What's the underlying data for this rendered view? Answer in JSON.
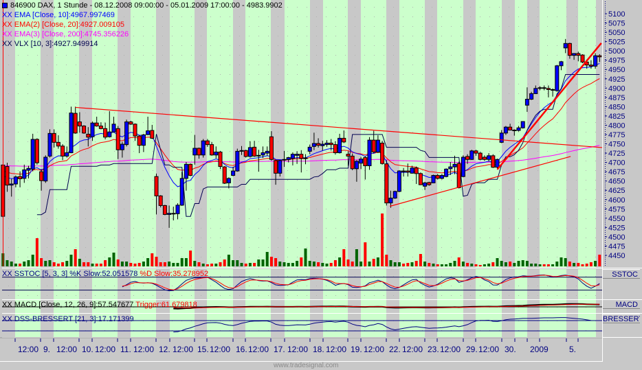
{
  "header": {
    "symbol_icon": "blue-square-icon",
    "title": "846900  DAX, 1 Stunde - 08.12.2008 09:00:00 - 05.01.2009 17:00:00 - 4983.9902"
  },
  "legends": [
    {
      "prefix": "XX",
      "text": "EMA [Close, 10]:4967.997469",
      "color": "#0000ff"
    },
    {
      "prefix": "XX",
      "text": "EMA(2) [Close, 20]:4927.009105",
      "color": "#ff0000"
    },
    {
      "prefix": "XX",
      "text": "EMA(3) [Close, 200]:4745.356226",
      "color": "#ff00ff"
    },
    {
      "prefix": "XX",
      "text": "VLX [10, 3]:4927.949914",
      "color": "#000050"
    }
  ],
  "indicators": {
    "sstoc": {
      "prefix": "XX",
      "text": "SSTOC [5, 3, 3] %K Slow:52.051578",
      "trigger": "%D Slow:35.278952",
      "side_label": "SSTOC"
    },
    "macd": {
      "prefix": "XX",
      "text": "MACD [Close, 12, 26, 9]:57.547677",
      "trigger": "Trigger:61.679818",
      "side_label": "MACD"
    },
    "dss": {
      "prefix": "XX",
      "text": "DSS-BRESSERT [21, 3]:17.171399",
      "side_label": "BRESSERT"
    }
  },
  "colors": {
    "up_candle": "#0000ff",
    "down_candle": "#ff0000",
    "session_day": "#ccffcc",
    "session_off": "#c8c8c8",
    "volume_up": "#006400",
    "volume_down": "#ff0000",
    "axis_text": "#000080",
    "trendline": "#ff0000"
  },
  "watermark": "www.tradesignal.com",
  "chart_data": {
    "type": "candlestick",
    "price_axis": {
      "ticks": [
        5100,
        5075,
        5050,
        5025,
        5000,
        4975,
        4950,
        4925,
        4900,
        4875,
        4850,
        4825,
        4800,
        4775,
        4750,
        4725,
        4700,
        4675,
        4650,
        4625,
        4600,
        4575,
        4550,
        4525,
        4500,
        4475,
        4450
      ],
      "range": [
        4450,
        5100
      ]
    },
    "time_axis": {
      "labels": [
        "12:00",
        "9.",
        "12:00",
        "10.",
        "12:00",
        "11.",
        "12:00",
        "12.",
        "12:00",
        "15.",
        "12:00",
        "16.",
        "12:00",
        "17.",
        "12:00",
        "18.",
        "12:00",
        "19.",
        "12:00",
        "22.",
        "12:00",
        "23.",
        "12:00",
        "29.",
        "12:00",
        "30.",
        "",
        "2009",
        "",
        "5.",
        ""
      ]
    },
    "ohlc": [
      [
        4693,
        4695,
        4552,
        4555
      ],
      [
        4689,
        4699,
        4621,
        4639
      ],
      [
        4639,
        4656,
        4608,
        4642
      ],
      [
        4642,
        4665,
        4633,
        4661
      ],
      [
        4662,
        4676,
        4633,
        4656
      ],
      [
        4657,
        4694,
        4645,
        4680
      ],
      [
        4679,
        4691,
        4657,
        4684
      ],
      [
        4682,
        4777,
        4676,
        4762
      ],
      [
        4762,
        4765,
        4694,
        4699
      ],
      [
        4675,
        4682,
        4624,
        4651
      ],
      [
        4650,
        4719,
        4645,
        4714
      ],
      [
        4717,
        4789,
        4713,
        4778
      ],
      [
        4778,
        4789,
        4740,
        4754
      ],
      [
        4754,
        4773,
        4737,
        4744
      ],
      [
        4744,
        4749,
        4706,
        4717
      ],
      [
        4717,
        4743,
        4713,
        4726
      ],
      [
        4726,
        4850,
        4725,
        4833
      ],
      [
        4832,
        4850,
        4777,
        4779
      ],
      [
        4809,
        4835,
        4780,
        4798
      ],
      [
        4798,
        4800,
        4777,
        4779
      ],
      [
        4776,
        4795,
        4743,
        4768
      ],
      [
        4769,
        4810,
        4758,
        4806
      ],
      [
        4806,
        4823,
        4796,
        4798
      ],
      [
        4798,
        4808,
        4789,
        4791
      ],
      [
        4791,
        4807,
        4762,
        4768
      ],
      [
        4769,
        4838,
        4767,
        4782
      ],
      [
        4782,
        4823,
        4780,
        4803
      ],
      [
        4791,
        4798,
        4709,
        4734
      ],
      [
        4734,
        4755,
        4713,
        4749
      ],
      [
        4748,
        4815,
        4743,
        4809
      ],
      [
        4809,
        4812,
        4801,
        4803
      ],
      [
        4803,
        4805,
        4758,
        4771
      ],
      [
        4771,
        4773,
        4725,
        4746
      ],
      [
        4746,
        4777,
        4728,
        4774
      ],
      [
        4775,
        4823,
        4773,
        4785
      ],
      [
        4786,
        4801,
        4763,
        4765
      ],
      [
        4662,
        4670,
        4560,
        4610
      ],
      [
        4610,
        4612,
        4579,
        4584
      ],
      [
        4584,
        4586,
        4558,
        4560
      ],
      [
        4560,
        4584,
        4524,
        4563
      ],
      [
        4562,
        4581,
        4544,
        4563
      ],
      [
        4562,
        4590,
        4547,
        4585
      ],
      [
        4585,
        4675,
        4583,
        4657
      ],
      [
        4657,
        4701,
        4624,
        4695
      ],
      [
        4695,
        4697,
        4663,
        4665
      ],
      [
        4720,
        4774,
        4694,
        4738
      ],
      [
        4738,
        4740,
        4710,
        4720
      ],
      [
        4720,
        4763,
        4713,
        4758
      ],
      [
        4758,
        4763,
        4742,
        4748
      ],
      [
        4748,
        4755,
        4718,
        4720
      ],
      [
        4720,
        4743,
        4711,
        4728
      ],
      [
        4728,
        4731,
        4682,
        4689
      ],
      [
        4688,
        4690,
        4642,
        4644
      ],
      [
        4645,
        4660,
        4630,
        4657
      ],
      [
        4665,
        4688,
        4663,
        4677
      ],
      [
        4677,
        4737,
        4675,
        4730
      ],
      [
        4730,
        4744,
        4720,
        4732
      ],
      [
        4732,
        4734,
        4713,
        4716
      ],
      [
        4716,
        4757,
        4713,
        4740
      ],
      [
        4741,
        4758,
        4715,
        4717
      ],
      [
        4719,
        4734,
        4675,
        4719
      ],
      [
        4720,
        4743,
        4712,
        4726
      ],
      [
        4725,
        4743,
        4718,
        4730
      ],
      [
        4769,
        4784,
        4705,
        4708
      ],
      [
        4705,
        4707,
        4640,
        4671
      ],
      [
        4671,
        4707,
        4662,
        4705
      ],
      [
        4707,
        4731,
        4688,
        4708
      ],
      [
        4708,
        4715,
        4700,
        4713
      ],
      [
        4711,
        4727,
        4692,
        4722
      ],
      [
        4719,
        4730,
        4696,
        4722
      ],
      [
        4722,
        4733,
        4673,
        4711
      ],
      [
        4712,
        4722,
        4695,
        4711
      ],
      [
        4730,
        4748,
        4722,
        4741
      ],
      [
        4743,
        4780,
        4733,
        4751
      ],
      [
        4751,
        4765,
        4740,
        4746
      ],
      [
        4745,
        4758,
        4732,
        4749
      ],
      [
        4748,
        4760,
        4742,
        4752
      ],
      [
        4752,
        4763,
        4732,
        4748
      ],
      [
        4748,
        4757,
        4721,
        4726
      ],
      [
        4726,
        4777,
        4724,
        4765
      ],
      [
        4765,
        4786,
        4752,
        4755
      ],
      [
        4722,
        4730,
        4691,
        4717
      ],
      [
        4717,
        4724,
        4679,
        4683
      ],
      [
        4683,
        4706,
        4648,
        4703
      ],
      [
        4698,
        4715,
        4682,
        4709
      ],
      [
        4713,
        4717,
        4654,
        4691
      ],
      [
        4691,
        4768,
        4680,
        4760
      ],
      [
        4760,
        4785,
        4725,
        4728
      ],
      [
        4728,
        4773,
        4725,
        4760
      ],
      [
        4752,
        4758,
        4694,
        4697
      ],
      [
        4696,
        4706,
        4584,
        4591
      ],
      [
        4591,
        4624,
        4578,
        4604
      ],
      [
        4604,
        4624,
        4602,
        4622
      ],
      [
        4622,
        4679,
        4620,
        4677
      ],
      [
        4677,
        4685,
        4662,
        4675
      ],
      [
        4677,
        4697,
        4662,
        4674
      ],
      [
        4671,
        4691,
        4670,
        4685
      ],
      [
        4685,
        4689,
        4642,
        4670
      ],
      [
        4670,
        4673,
        4639,
        4640
      ],
      [
        4636,
        4648,
        4626,
        4645
      ],
      [
        4646,
        4648,
        4637,
        4640
      ],
      [
        4645,
        4667,
        4644,
        4665
      ],
      [
        4665,
        4669,
        4654,
        4657
      ],
      [
        4657,
        4669,
        4654,
        4665
      ],
      [
        4662,
        4684,
        4660,
        4682
      ],
      [
        4683,
        4701,
        4666,
        4688
      ],
      [
        4688,
        4718,
        4668,
        4695
      ],
      [
        4697,
        4702,
        4630,
        4632
      ],
      [
        4662,
        4719,
        4660,
        4714
      ],
      [
        4716,
        4722,
        4696,
        4708
      ],
      [
        4708,
        4734,
        4707,
        4731
      ],
      [
        4731,
        4734,
        4718,
        4725
      ],
      [
        4725,
        4728,
        4706,
        4708
      ],
      [
        4714,
        4719,
        4704,
        4708
      ],
      [
        4708,
        4725,
        4702,
        4718
      ],
      [
        4718,
        4722,
        4685,
        4687
      ],
      [
        4687,
        4710,
        4681,
        4708
      ],
      [
        4754,
        4787,
        4752,
        4779
      ],
      [
        4779,
        4798,
        4774,
        4795
      ],
      [
        4795,
        4804,
        4786,
        4787
      ],
      [
        4786,
        4789,
        4772,
        4787
      ],
      [
        4786,
        4798,
        4783,
        4793
      ],
      [
        4793,
        4810,
        4791,
        4810
      ],
      [
        4854,
        4902,
        4836,
        4870
      ],
      [
        4870,
        4890,
        4868,
        4885
      ],
      [
        4885,
        4907,
        4884,
        4899
      ],
      [
        4900,
        4905,
        4894,
        4901
      ],
      [
        4901,
        4907,
        4894,
        4900
      ],
      [
        4899,
        4907,
        4875,
        4896
      ],
      [
        4896,
        4899,
        4877,
        4896
      ],
      [
        4893,
        4962,
        4890,
        4960
      ],
      [
        4960,
        4973,
        4948,
        4971
      ],
      [
        5008,
        5032,
        4994,
        5020
      ],
      [
        5020,
        5022,
        4979,
        4988
      ],
      [
        4988,
        4994,
        4976,
        4993
      ],
      [
        4993,
        4998,
        4972,
        4988
      ],
      [
        4989,
        4991,
        4967,
        4970
      ],
      [
        4970,
        4977,
        4952,
        4962
      ],
      [
        4962,
        4975,
        4952,
        4959
      ],
      [
        4959,
        4994,
        4952,
        4987
      ],
      [
        4987,
        4991,
        4970,
        4984
      ]
    ],
    "volume": [
      19,
      9,
      7,
      4,
      4,
      7,
      9,
      17,
      41,
      12,
      8,
      9,
      6,
      4,
      6,
      8,
      17,
      25,
      11,
      6,
      6,
      4,
      4,
      4,
      9,
      13,
      20,
      10,
      7,
      7,
      5,
      4,
      5,
      7,
      12,
      19,
      14,
      6,
      6,
      7,
      5,
      5,
      12,
      12,
      23,
      8,
      6,
      4,
      3,
      4,
      4,
      6,
      10,
      17,
      9,
      9,
      5,
      4,
      5,
      5,
      10,
      10,
      21,
      14,
      12,
      7,
      6,
      5,
      5,
      8,
      13,
      26,
      8,
      7,
      6,
      5,
      4,
      5,
      9,
      13,
      25,
      10,
      7,
      25,
      7,
      35,
      7,
      11,
      13,
      77,
      17,
      9,
      6,
      6,
      4,
      5,
      6,
      8,
      18,
      7,
      5,
      4,
      3,
      3,
      3,
      5,
      8,
      13,
      7,
      5,
      4,
      3,
      2,
      3,
      4,
      6,
      12,
      8,
      6,
      7,
      5,
      8,
      9,
      8,
      4,
      4,
      3,
      3,
      3,
      3,
      7,
      13,
      12,
      7,
      5,
      5,
      3,
      4,
      6,
      8,
      17
    ],
    "trendlines": [
      {
        "from": [
          17,
          4848
        ],
        "to": [
          140.6,
          4740
        ]
      },
      {
        "from": [
          90.8,
          4582
        ],
        "to": [
          133.2,
          4716
        ]
      },
      {
        "from": [
          116,
          4681
        ],
        "to": [
          140.4,
          5021
        ],
        "bold": true
      }
    ],
    "indicator_levels": {
      "sstoc": [
        80,
        20
      ],
      "dss": [
        80,
        20
      ]
    }
  }
}
